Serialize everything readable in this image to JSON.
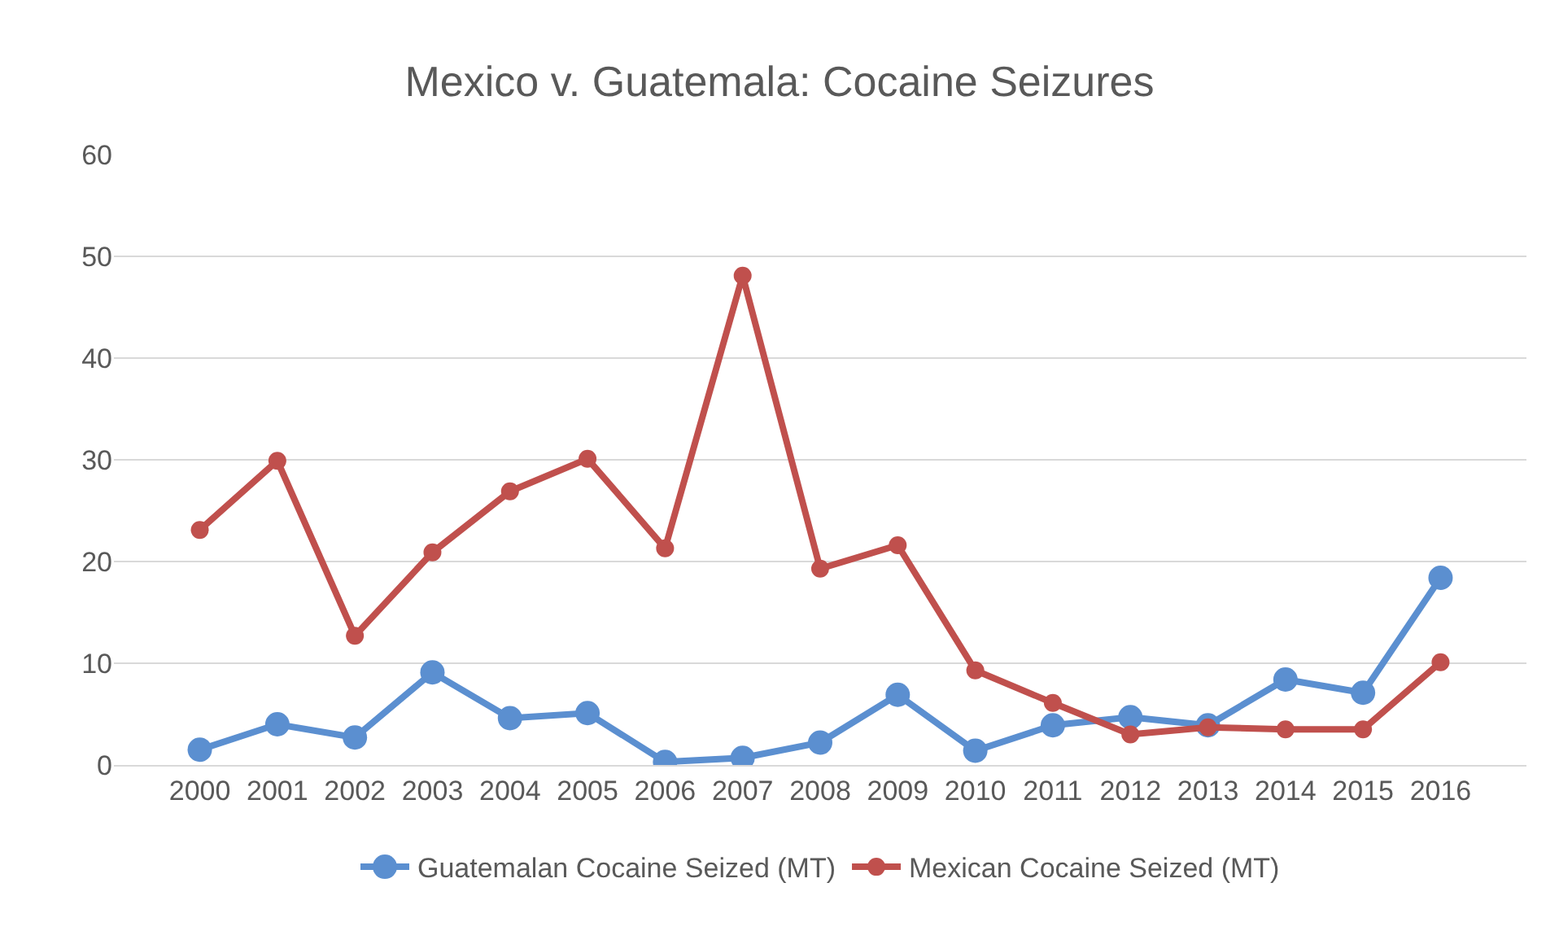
{
  "chart_data": {
    "type": "line",
    "title": "Mexico v. Guatemala: Cocaine Seizures",
    "categories": [
      "2000",
      "2001",
      "2002",
      "2003",
      "2004",
      "2005",
      "2006",
      "2007",
      "2008",
      "2009",
      "2010",
      "2011",
      "2012",
      "2013",
      "2014",
      "2015",
      "2016"
    ],
    "series": [
      {
        "name": "Guatemalan Cocaine Seized (MT)",
        "color": "#5b8fd0",
        "values": [
          1.5,
          4.0,
          2.7,
          9.1,
          4.6,
          5.1,
          0.3,
          0.7,
          2.2,
          6.9,
          1.4,
          3.9,
          4.7,
          3.9,
          8.4,
          7.1,
          18.4
        ]
      },
      {
        "name": "Mexican Cocaine Seized (MT)",
        "color": "#c0504d",
        "values": [
          23.1,
          29.9,
          12.7,
          20.9,
          26.9,
          30.1,
          21.3,
          48.1,
          19.3,
          21.6,
          9.3,
          6.1,
          3.0,
          3.7,
          3.5,
          3.5,
          10.1
        ]
      }
    ],
    "ylim": [
      0,
      60
    ],
    "yticks": [
      0,
      10,
      20,
      30,
      40,
      50,
      60
    ],
    "grid": "y",
    "legend": "bottom",
    "marker": "circle",
    "line_style": "solid"
  }
}
